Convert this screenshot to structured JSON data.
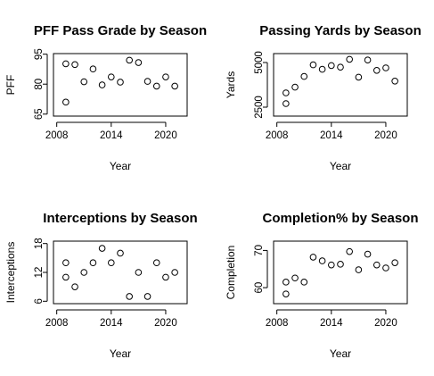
{
  "chart_data": [
    {
      "type": "scatter",
      "title": "PFF Pass Grade by Season",
      "xlabel": "Year",
      "ylabel": "PFF",
      "xticks": [
        2008,
        2014,
        2020
      ],
      "yticks": [
        65,
        80,
        95
      ],
      "xlim": [
        2007.64,
        2022.36
      ],
      "ylim": [
        64.0,
        95.3
      ],
      "grid": false,
      "points": [
        {
          "x": 2009,
          "y": 71.0
        },
        {
          "x": 2009,
          "y": 90.2
        },
        {
          "x": 2010,
          "y": 89.8
        },
        {
          "x": 2011,
          "y": 81.2
        },
        {
          "x": 2012,
          "y": 87.6
        },
        {
          "x": 2013,
          "y": 79.6
        },
        {
          "x": 2014,
          "y": 83.6
        },
        {
          "x": 2015,
          "y": 81.0
        },
        {
          "x": 2016,
          "y": 92.0
        },
        {
          "x": 2017,
          "y": 90.8
        },
        {
          "x": 2018,
          "y": 81.4
        },
        {
          "x": 2019,
          "y": 79.0
        },
        {
          "x": 2020,
          "y": 83.6
        },
        {
          "x": 2021,
          "y": 79.0
        }
      ]
    },
    {
      "type": "scatter",
      "title": "Passing Yards by Season",
      "xlabel": "Year",
      "ylabel": "Yards",
      "xticks": [
        2008,
        2014,
        2020
      ],
      "yticks": [
        2500,
        5000
      ],
      "yticklabels": [
        "2500",
        "5000"
      ],
      "xlim": [
        2007.64,
        2022.36
      ],
      "ylim": [
        2000,
        5500
      ],
      "grid": false,
      "points": [
        {
          "x": 2009,
          "y": 2700
        },
        {
          "x": 2009,
          "y": 3300
        },
        {
          "x": 2010,
          "y": 3620
        },
        {
          "x": 2011,
          "y": 4220
        },
        {
          "x": 2012,
          "y": 4870
        },
        {
          "x": 2013,
          "y": 4620
        },
        {
          "x": 2014,
          "y": 4830
        },
        {
          "x": 2015,
          "y": 4740
        },
        {
          "x": 2016,
          "y": 5180
        },
        {
          "x": 2017,
          "y": 4180
        },
        {
          "x": 2018,
          "y": 5140
        },
        {
          "x": 2019,
          "y": 4560
        },
        {
          "x": 2020,
          "y": 4700
        },
        {
          "x": 2021,
          "y": 3960
        }
      ]
    },
    {
      "type": "scatter",
      "title": "Interceptions by Season",
      "xlabel": "Year",
      "ylabel": "Interceptions",
      "xticks": [
        2008,
        2014,
        2020
      ],
      "yticks": [
        6,
        12,
        18
      ],
      "xlim": [
        2007.64,
        2022.36
      ],
      "ylim": [
        5.5,
        18.5
      ],
      "grid": false,
      "points": [
        {
          "x": 2009,
          "y": 14
        },
        {
          "x": 2009,
          "y": 11
        },
        {
          "x": 2010,
          "y": 9
        },
        {
          "x": 2011,
          "y": 12
        },
        {
          "x": 2012,
          "y": 14
        },
        {
          "x": 2013,
          "y": 17
        },
        {
          "x": 2014,
          "y": 14
        },
        {
          "x": 2015,
          "y": 16
        },
        {
          "x": 2016,
          "y": 7
        },
        {
          "x": 2017,
          "y": 12
        },
        {
          "x": 2018,
          "y": 7
        },
        {
          "x": 2019,
          "y": 14
        },
        {
          "x": 2020,
          "y": 11
        },
        {
          "x": 2021,
          "y": 12
        }
      ]
    },
    {
      "type": "scatter",
      "title": "Completion% by Season",
      "xlabel": "Year",
      "ylabel": "Completion",
      "xticks": [
        2008,
        2014,
        2020
      ],
      "yticks": [
        60,
        70
      ],
      "xlim": [
        2007.64,
        2022.36
      ],
      "ylim": [
        55.7,
        72.5
      ],
      "grid": false,
      "points": [
        {
          "x": 2009,
          "y": 58.3
        },
        {
          "x": 2009,
          "y": 61.5
        },
        {
          "x": 2010,
          "y": 62.6
        },
        {
          "x": 2011,
          "y": 61.5
        },
        {
          "x": 2012,
          "y": 68.2
        },
        {
          "x": 2013,
          "y": 67.2
        },
        {
          "x": 2014,
          "y": 66.1
        },
        {
          "x": 2015,
          "y": 66.3
        },
        {
          "x": 2016,
          "y": 69.7
        },
        {
          "x": 2017,
          "y": 64.8
        },
        {
          "x": 2018,
          "y": 69.0
        },
        {
          "x": 2019,
          "y": 66.1
        },
        {
          "x": 2020,
          "y": 65.3
        },
        {
          "x": 2021,
          "y": 66.7
        }
      ]
    }
  ]
}
